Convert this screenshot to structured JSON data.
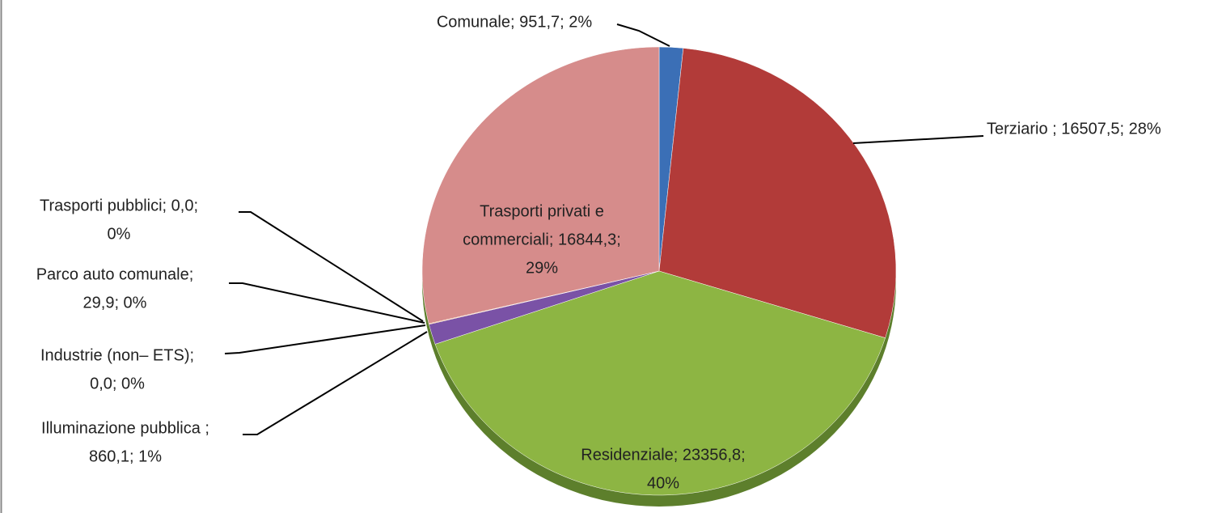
{
  "chart_data": {
    "type": "pie",
    "values": [
      951.7,
      16507.5,
      23356.8,
      860.1,
      0.0,
      29.9,
      0.0,
      16844.3
    ],
    "value_labels": [
      [
        "Comunale; 951,7; 2%"
      ],
      [
        "Terziario ; 16507,5; 28%"
      ],
      [
        "Residenziale; 23356,8;",
        "40%"
      ],
      [
        "Illuminazione pubblica ;",
        "860,1; 1%"
      ],
      [
        "Industrie (non– ETS);",
        "0,0; 0%"
      ],
      [
        "Parco auto comunale;",
        "29,9; 0%"
      ],
      [
        "Trasporti pubblici; 0,0;",
        "0%"
      ],
      [
        "Trasporti privati e",
        "commerciali; 16844,3;",
        "29%"
      ]
    ],
    "colors": [
      "#3b6fb6",
      "#b23b39",
      "#8db543",
      "#7a52a6",
      "#3fa6c2",
      "#f08d3a",
      "#5a86c4",
      "#d68c8b"
    ]
  }
}
